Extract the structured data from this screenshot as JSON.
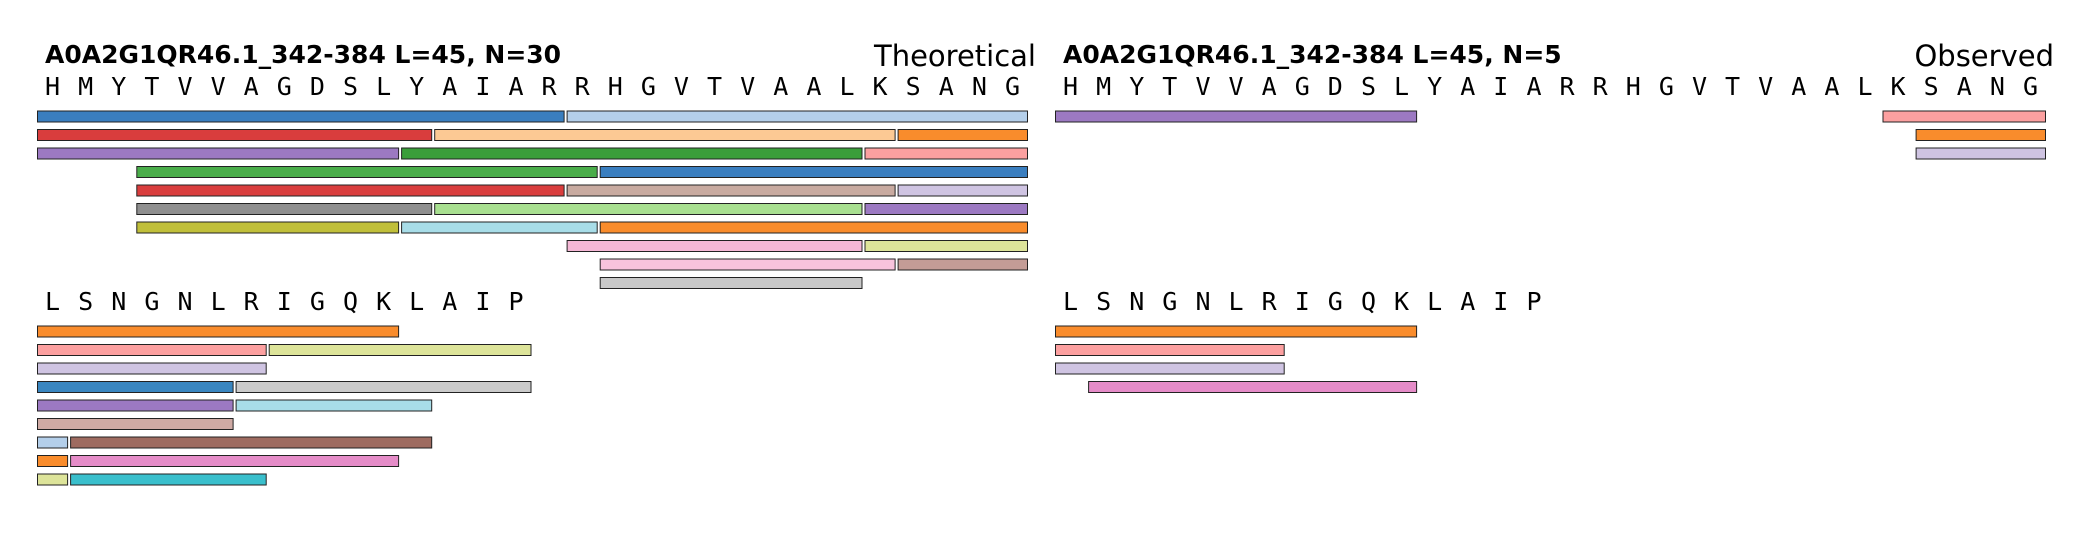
{
  "panels": [
    {
      "id": "theoretical",
      "title": "A0A2G1QR46.1_342-384  L=45, N=30",
      "label": "Theoretical",
      "rows": [
        {
          "sequence": "HMYTVVAGDSLYAIARRHGVTVAALKSANG",
          "start": 1,
          "tracks": [
            [
              {
                "start": 1,
                "end": 16,
                "color": "#3a7ebf"
              },
              {
                "start": 17,
                "end": 30,
                "color": "#b4cfea"
              }
            ],
            [
              {
                "start": 1,
                "end": 12,
                "color": "#d93d3d"
              },
              {
                "start": 13,
                "end": 26,
                "color": "#fcc994"
              },
              {
                "start": 27,
                "end": 30,
                "color": "#f98c2c"
              }
            ],
            [
              {
                "start": 1,
                "end": 11,
                "color": "#9c79c2"
              },
              {
                "start": 12,
                "end": 25,
                "color": "#3a9e3a"
              },
              {
                "start": 26,
                "end": 30,
                "color": "#fca0a0"
              }
            ],
            [
              {
                "start": 4,
                "end": 17,
                "color": "#4aad4a"
              },
              {
                "start": 18,
                "end": 30,
                "color": "#3a7ebf"
              }
            ],
            [
              {
                "start": 4,
                "end": 16,
                "color": "#d93d3d"
              },
              {
                "start": 17,
                "end": 26,
                "color": "#c8aaa0"
              },
              {
                "start": 27,
                "end": 30,
                "color": "#cfc4e2"
              }
            ],
            [
              {
                "start": 4,
                "end": 12,
                "color": "#8f8f8f"
              },
              {
                "start": 13,
                "end": 25,
                "color": "#a8df90"
              },
              {
                "start": 26,
                "end": 30,
                "color": "#9c79c2"
              }
            ],
            [
              {
                "start": 4,
                "end": 11,
                "color": "#c0bf3a"
              },
              {
                "start": 12,
                "end": 17,
                "color": "#a8dde8"
              },
              {
                "start": 18,
                "end": 30,
                "color": "#f98c2c"
              }
            ],
            [
              {
                "start": 17,
                "end": 25,
                "color": "#f5b8d6"
              },
              {
                "start": 26,
                "end": 30,
                "color": "#dde49a"
              }
            ],
            [
              {
                "start": 18,
                "end": 26,
                "color": "#f8c3dc"
              },
              {
                "start": 27,
                "end": 30,
                "color": "#c49c96"
              }
            ],
            [
              {
                "start": 18,
                "end": 25,
                "color": "#c8c8c8"
              }
            ]
          ]
        },
        {
          "sequence": "LSNGNLRIGQKLAIP",
          "start": 31,
          "tracks": [
            [
              {
                "start": 31,
                "end": 41,
                "color": "#f98c2c"
              }
            ],
            [
              {
                "start": 31,
                "end": 37,
                "color": "#fca0a0"
              },
              {
                "start": 38,
                "end": 45,
                "color": "#dde49a"
              }
            ],
            [
              {
                "start": 31,
                "end": 37,
                "color": "#cfc4e2"
              }
            ],
            [
              {
                "start": 31,
                "end": 36,
                "color": "#3a86c0"
              },
              {
                "start": 37,
                "end": 45,
                "color": "#cacaca"
              }
            ],
            [
              {
                "start": 31,
                "end": 36,
                "color": "#9c79c2"
              },
              {
                "start": 37,
                "end": 42,
                "color": "#a8dde8"
              }
            ],
            [
              {
                "start": 31,
                "end": 36,
                "color": "#cfaaa4"
              }
            ],
            [
              {
                "start": 31,
                "end": 31,
                "color": "#b4cfea"
              },
              {
                "start": 32,
                "end": 42,
                "color": "#9e6b60"
              }
            ],
            [
              {
                "start": 31,
                "end": 31,
                "color": "#f98c2c"
              },
              {
                "start": 32,
                "end": 41,
                "color": "#e58cc8"
              }
            ],
            [
              {
                "start": 31,
                "end": 31,
                "color": "#dde49a"
              },
              {
                "start": 32,
                "end": 37,
                "color": "#3abfcc"
              }
            ]
          ]
        }
      ]
    },
    {
      "id": "observed",
      "title": "A0A2G1QR46.1_342-384  L=45, N=5",
      "label": "Observed",
      "rows": [
        {
          "sequence": "HMYTVVAGDSLYAIARRHGVTVAALKSANG",
          "start": 1,
          "tracks": [
            [
              {
                "start": 1,
                "end": 11,
                "color": "#9c79c2"
              },
              {
                "start": 26,
                "end": 30,
                "color": "#fca0a0"
              }
            ],
            [
              {
                "start": 27,
                "end": 30,
                "color": "#f98c2c"
              }
            ],
            [
              {
                "start": 27,
                "end": 30,
                "color": "#cfc4e2"
              }
            ]
          ]
        },
        {
          "sequence": "LSNGNLRIGQKLAIP",
          "start": 31,
          "tracks": [
            [
              {
                "start": 31,
                "end": 41,
                "color": "#f98c2c"
              }
            ],
            [
              {
                "start": 31,
                "end": 37,
                "color": "#fca0a0"
              }
            ],
            [
              {
                "start": 31,
                "end": 37,
                "color": "#cfc4e2"
              }
            ],
            [
              {
                "start": 32,
                "end": 41,
                "color": "#e58cc8"
              }
            ]
          ]
        }
      ]
    }
  ]
}
